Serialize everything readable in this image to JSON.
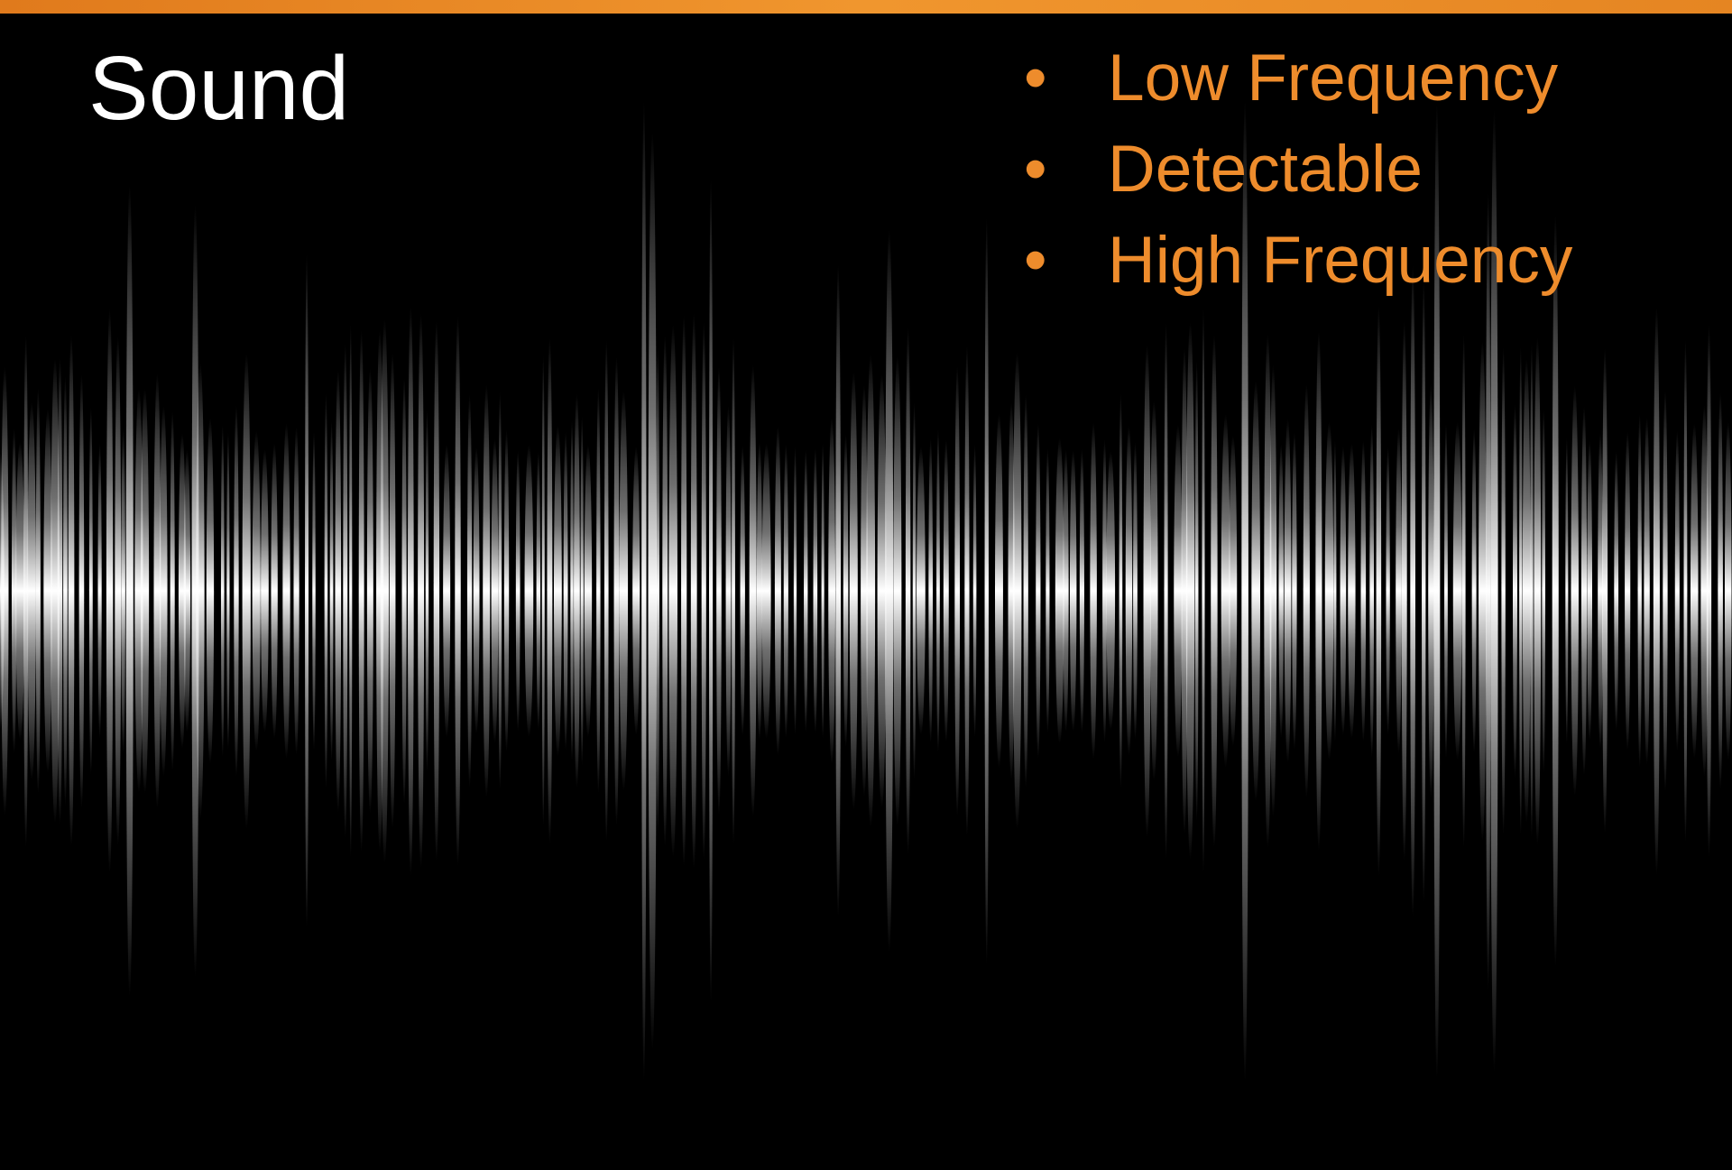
{
  "title": "Sound",
  "bullets": [
    "Low Frequency",
    "Detectable",
    "High Frequency"
  ]
}
